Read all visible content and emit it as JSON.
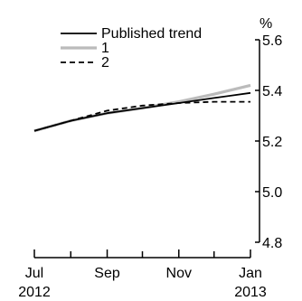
{
  "chart_data": {
    "type": "line",
    "x_tick_labels": [
      {
        "date": "2012-07-01",
        "label": "Jul",
        "sublabel": "2012"
      },
      {
        "date": "2012-09-01",
        "label": "Sep",
        "sublabel": ""
      },
      {
        "date": "2012-11-01",
        "label": "Nov",
        "sublabel": ""
      },
      {
        "date": "2013-01-01",
        "label": "Jan",
        "sublabel": "2013"
      }
    ],
    "x_minor_ticks": [
      "2012-08-01",
      "2012-10-01",
      "2012-12-01"
    ],
    "y_unit_label": "%",
    "ylim": [
      4.8,
      5.6
    ],
    "y_ticks": [
      {
        "value": 4.8,
        "label": "4.8"
      },
      {
        "value": 5.0,
        "label": "5.0"
      },
      {
        "value": 5.2,
        "label": "5.2"
      },
      {
        "value": 5.4,
        "label": "5.4"
      },
      {
        "value": 5.6,
        "label": "5.6"
      }
    ],
    "y_axis_side": "right",
    "grid": false,
    "legend_position": "top-left",
    "series": [
      {
        "name": "Published trend",
        "color": "#000000",
        "style": "solid",
        "points": [
          [
            "2012-07-01",
            5.24
          ],
          [
            "2012-08-01",
            5.28
          ],
          [
            "2012-09-01",
            5.31
          ],
          [
            "2012-10-01",
            5.33
          ],
          [
            "2012-11-01",
            5.35
          ],
          [
            "2012-12-01",
            5.37
          ],
          [
            "2013-01-01",
            5.39
          ]
        ]
      },
      {
        "name": "1",
        "color": "#bbbbbb",
        "style": "solid",
        "points": [
          [
            "2012-07-01",
            5.24
          ],
          [
            "2012-08-01",
            5.28
          ],
          [
            "2012-09-01",
            5.31
          ],
          [
            "2012-10-01",
            5.33
          ],
          [
            "2012-11-01",
            5.355
          ],
          [
            "2012-12-01",
            5.385
          ],
          [
            "2013-01-01",
            5.42
          ]
        ]
      },
      {
        "name": "2",
        "color": "#000000",
        "style": "dashed",
        "points": [
          [
            "2012-07-01",
            5.24
          ],
          [
            "2012-08-01",
            5.28
          ],
          [
            "2012-09-01",
            5.32
          ],
          [
            "2012-10-01",
            5.34
          ],
          [
            "2012-11-01",
            5.35
          ],
          [
            "2012-12-01",
            5.355
          ],
          [
            "2013-01-01",
            5.355
          ]
        ]
      }
    ]
  }
}
